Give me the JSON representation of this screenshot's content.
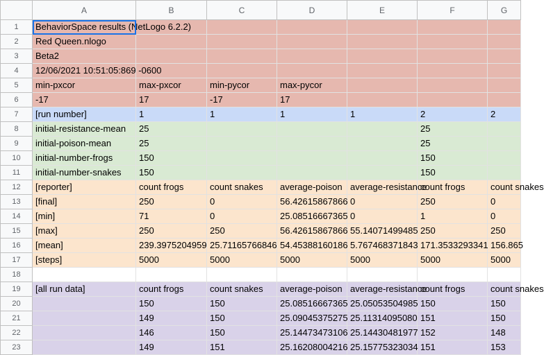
{
  "columns": [
    "A",
    "B",
    "C",
    "D",
    "E",
    "F",
    "G"
  ],
  "colors": {
    "header": "#e6b8af",
    "run": "#c9daf8",
    "params": "#d9ead3",
    "reporter": "#fce5cd",
    "runData": "#d9d2e9",
    "selection": "#1a73e8"
  },
  "active_cell": "A1",
  "rows": [
    {
      "n": "1",
      "band": "red",
      "cells": [
        "BehaviorSpace results (NetLogo 6.2.2)",
        "",
        "",
        "",
        "",
        "",
        ""
      ]
    },
    {
      "n": "2",
      "band": "red",
      "cells": [
        "Red Queen.nlogo",
        "",
        "",
        "",
        "",
        "",
        ""
      ]
    },
    {
      "n": "3",
      "band": "red",
      "cells": [
        "Beta2",
        "",
        "",
        "",
        "",
        "",
        ""
      ]
    },
    {
      "n": "4",
      "band": "red",
      "cells": [
        "12/06/2021 10:51:05:869 -0600",
        "",
        "",
        "",
        "",
        "",
        ""
      ]
    },
    {
      "n": "5",
      "band": "red",
      "cells": [
        "min-pxcor",
        "max-pxcor",
        "min-pycor",
        "max-pycor",
        "",
        "",
        ""
      ]
    },
    {
      "n": "6",
      "band": "red",
      "cells": [
        "-17",
        "17",
        "-17",
        "17",
        "",
        "",
        ""
      ]
    },
    {
      "n": "7",
      "band": "blue",
      "cells": [
        "[run number]",
        "1",
        "1",
        "1",
        "1",
        "2",
        "2"
      ]
    },
    {
      "n": "8",
      "band": "green",
      "cells": [
        "initial-resistance-mean",
        "25",
        "",
        "",
        "",
        "25",
        ""
      ]
    },
    {
      "n": "9",
      "band": "green",
      "cells": [
        "initial-poison-mean",
        "25",
        "",
        "",
        "",
        "25",
        ""
      ]
    },
    {
      "n": "10",
      "band": "green",
      "cells": [
        "initial-number-frogs",
        "150",
        "",
        "",
        "",
        "150",
        ""
      ]
    },
    {
      "n": "11",
      "band": "green",
      "cells": [
        "initial-number-snakes",
        "150",
        "",
        "",
        "",
        "150",
        ""
      ]
    },
    {
      "n": "12",
      "band": "orange",
      "cells": [
        "[reporter]",
        "count frogs",
        "count snakes",
        "average-poison",
        "average-resistance",
        "count frogs",
        "count snakes"
      ]
    },
    {
      "n": "13",
      "band": "orange",
      "cells": [
        "[final]",
        "250",
        "0",
        "56.42615867866",
        "0",
        "250",
        "0"
      ]
    },
    {
      "n": "14",
      "band": "orange",
      "cells": [
        "[min]",
        "71",
        "0",
        "25.08516667365",
        "0",
        "1",
        "0"
      ]
    },
    {
      "n": "15",
      "band": "orange",
      "cells": [
        "[max]",
        "250",
        "250",
        "56.42615867866",
        "55.14071499485",
        "250",
        "250"
      ]
    },
    {
      "n": "16",
      "band": "orange",
      "cells": [
        "[mean]",
        "239.3975204959",
        "25.71165766846",
        "54.45388160186",
        "5.767468371843",
        "171.3533293341",
        "156.865"
      ]
    },
    {
      "n": "17",
      "band": "orange",
      "cells": [
        "[steps]",
        "5000",
        "5000",
        "5000",
        "5000",
        "5000",
        "5000"
      ]
    },
    {
      "n": "18",
      "band": "",
      "cells": [
        "",
        "",
        "",
        "",
        "",
        "",
        ""
      ]
    },
    {
      "n": "19",
      "band": "purple",
      "cells": [
        "[all run data]",
        "count frogs",
        "count snakes",
        "average-poison",
        "average-resistance",
        "count frogs",
        "count snakes"
      ]
    },
    {
      "n": "20",
      "band": "purple",
      "cells": [
        "",
        "150",
        "150",
        "25.08516667365",
        "25.05053504985",
        "150",
        "150"
      ]
    },
    {
      "n": "21",
      "band": "purple",
      "cells": [
        "",
        "149",
        "150",
        "25.09045375275",
        "25.11314095080",
        "151",
        "150"
      ]
    },
    {
      "n": "22",
      "band": "purple",
      "cells": [
        "",
        "146",
        "150",
        "25.14473473106",
        "25.14430481977",
        "152",
        "148"
      ]
    },
    {
      "n": "23",
      "band": "purple",
      "cells": [
        "",
        "149",
        "151",
        "25.16208004216",
        "25.15775323034",
        "151",
        "153"
      ]
    }
  ]
}
